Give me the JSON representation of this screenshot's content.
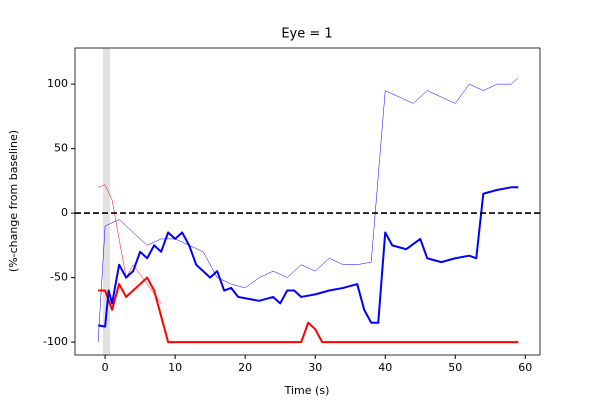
{
  "chart_data": {
    "type": "line",
    "title": "Eye = 1",
    "x_label": "Time (s)",
    "y_label": "(%-change from baseline)",
    "xlim": [
      -4.3,
      62.1
    ],
    "ylim": [
      -110,
      128
    ],
    "xticks": [
      0,
      10,
      20,
      30,
      40,
      50,
      60
    ],
    "yticks": [
      -100,
      -50,
      0,
      50,
      100
    ],
    "reference_line": 0,
    "shaded_span": [
      -0.3,
      0.7
    ],
    "series": [
      {
        "color": "#0000ff",
        "width": 0.5,
        "x": [
          -1,
          0,
          2,
          4,
          6,
          8,
          10,
          12,
          14,
          16,
          18,
          20,
          22,
          24,
          26,
          28,
          30,
          32,
          34,
          36,
          38,
          40,
          42,
          44,
          46,
          48,
          50,
          52,
          54,
          56,
          58,
          59
        ],
        "values": [
          -100,
          -10,
          -5,
          -15,
          -25,
          -20,
          -20,
          -25,
          -30,
          -50,
          -55,
          -58,
          -50,
          -45,
          -50,
          -40,
          -45,
          -35,
          -40,
          -40,
          -38,
          95,
          90,
          85,
          95,
          90,
          85,
          100,
          95,
          100,
          100,
          105
        ]
      },
      {
        "color": "#ff0000",
        "width": 0.5,
        "x": [
          -1,
          0,
          1,
          2,
          3,
          4,
          6,
          8
        ],
        "values": [
          20,
          22,
          10,
          -20,
          -50,
          -40,
          -55,
          -70
        ]
      },
      {
        "color": "#ff0000",
        "width": 2,
        "x": [
          -1,
          0,
          1,
          2,
          3,
          4,
          5,
          6,
          7,
          8,
          9,
          15,
          16,
          28,
          29,
          30,
          31,
          59
        ],
        "values": [
          -60,
          -60,
          -75,
          -55,
          -65,
          -60,
          -55,
          -50,
          -60,
          -80,
          -100,
          -100,
          -100,
          -100,
          -85,
          -90,
          -100,
          -100
        ]
      },
      {
        "color": "#0000ff",
        "width": 2,
        "x": [
          -1,
          0,
          0.5,
          1,
          2,
          3,
          4,
          5,
          6,
          7,
          8,
          9,
          10,
          11,
          12,
          13,
          14,
          15,
          16,
          17,
          18,
          19,
          20,
          22,
          24,
          25,
          26,
          27,
          28,
          30,
          32,
          34,
          36,
          37,
          38,
          39,
          40,
          41,
          43,
          45,
          46,
          48,
          50,
          52,
          53,
          54,
          56,
          58,
          59
        ],
        "values": [
          -87,
          -88,
          -60,
          -70,
          -40,
          -50,
          -45,
          -30,
          -35,
          -25,
          -30,
          -15,
          -20,
          -15,
          -25,
          -40,
          -45,
          -50,
          -45,
          -60,
          -58,
          -65,
          -66,
          -68,
          -65,
          -70,
          -60,
          -60,
          -65,
          -63,
          -60,
          -58,
          -55,
          -75,
          -85,
          -85,
          -15,
          -25,
          -28,
          -20,
          -35,
          -38,
          -35,
          -33,
          -35,
          15,
          18,
          20,
          20
        ]
      }
    ]
  }
}
